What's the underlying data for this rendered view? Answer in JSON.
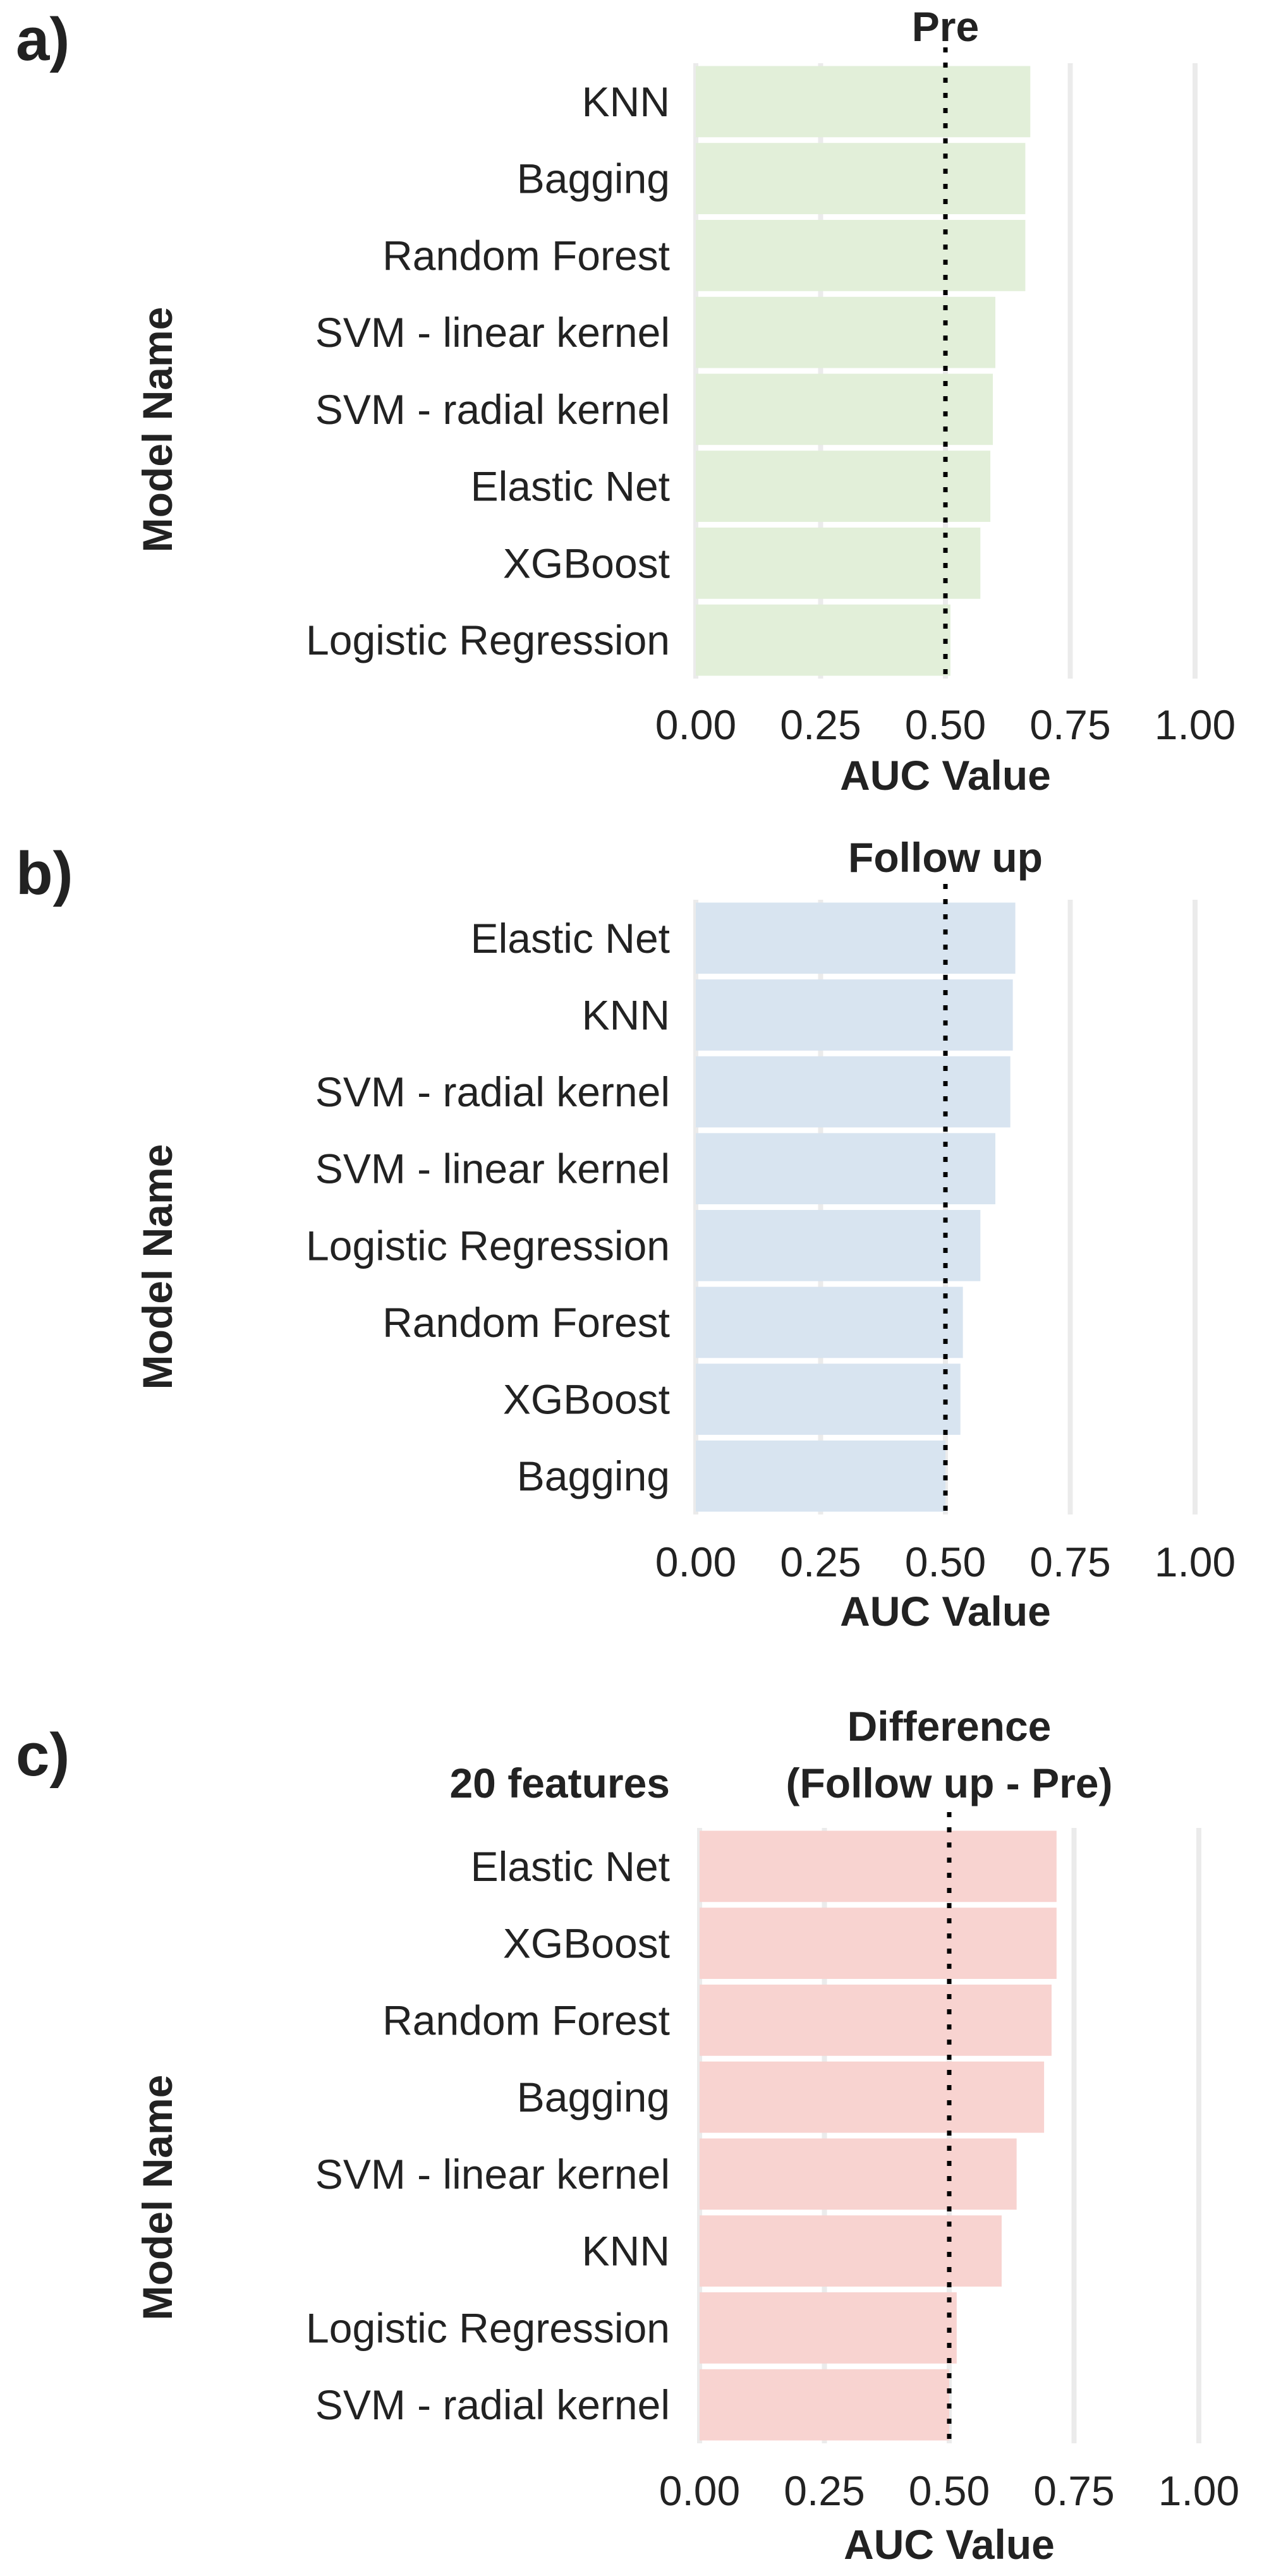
{
  "chart_data": [
    {
      "type": "bar",
      "orientation": "horizontal",
      "panel_label": "a)",
      "title_lines": [
        "Pre"
      ],
      "corner_note": "",
      "xlabel": "AUC Value",
      "ylabel": "Model Name",
      "xlim": [
        0,
        1
      ],
      "x_ticks": [
        "0.00",
        "0.25",
        "0.50",
        "0.75",
        "1.00"
      ],
      "reference_line": 0.5,
      "bar_color": "#e2efd9",
      "categories": [
        "KNN",
        "Bagging",
        "Random Forest",
        "SVM - linear kernel",
        "SVM - radial kernel",
        "Elastic Net",
        "XGBoost",
        "Logistic Regression"
      ],
      "values": [
        0.67,
        0.66,
        0.66,
        0.6,
        0.595,
        0.59,
        0.57,
        0.51
      ]
    },
    {
      "type": "bar",
      "orientation": "horizontal",
      "panel_label": "b)",
      "title_lines": [
        "Follow up"
      ],
      "corner_note": "",
      "xlabel": "AUC Value",
      "ylabel": "Model Name",
      "xlim": [
        0,
        1
      ],
      "x_ticks": [
        "0.00",
        "0.25",
        "0.50",
        "0.75",
        "1.00"
      ],
      "reference_line": 0.5,
      "bar_color": "#d8e4f0",
      "categories": [
        "Elastic Net",
        "KNN",
        "SVM - radial kernel",
        "SVM - linear kernel",
        "Logistic Regression",
        "Random Forest",
        "XGBoost",
        "Bagging"
      ],
      "values": [
        0.64,
        0.635,
        0.63,
        0.6,
        0.57,
        0.535,
        0.53,
        0.5
      ]
    },
    {
      "type": "bar",
      "orientation": "horizontal",
      "panel_label": "c)",
      "title_lines": [
        "Difference",
        "(Follow up - Pre)"
      ],
      "corner_note": "20 features",
      "xlabel": "AUC Value",
      "ylabel": "Model Name",
      "xlim": [
        0,
        1
      ],
      "x_ticks": [
        "0.00",
        "0.25",
        "0.50",
        "0.75",
        "1.00"
      ],
      "reference_line": 0.5,
      "bar_color": "#f8d3d0",
      "categories": [
        "Elastic Net",
        "XGBoost",
        "Random Forest",
        "Bagging",
        "SVM - linear kernel",
        "KNN",
        "Logistic Regression",
        "SVM - radial kernel"
      ],
      "values": [
        0.715,
        0.715,
        0.705,
        0.69,
        0.635,
        0.605,
        0.515,
        0.5
      ]
    }
  ]
}
